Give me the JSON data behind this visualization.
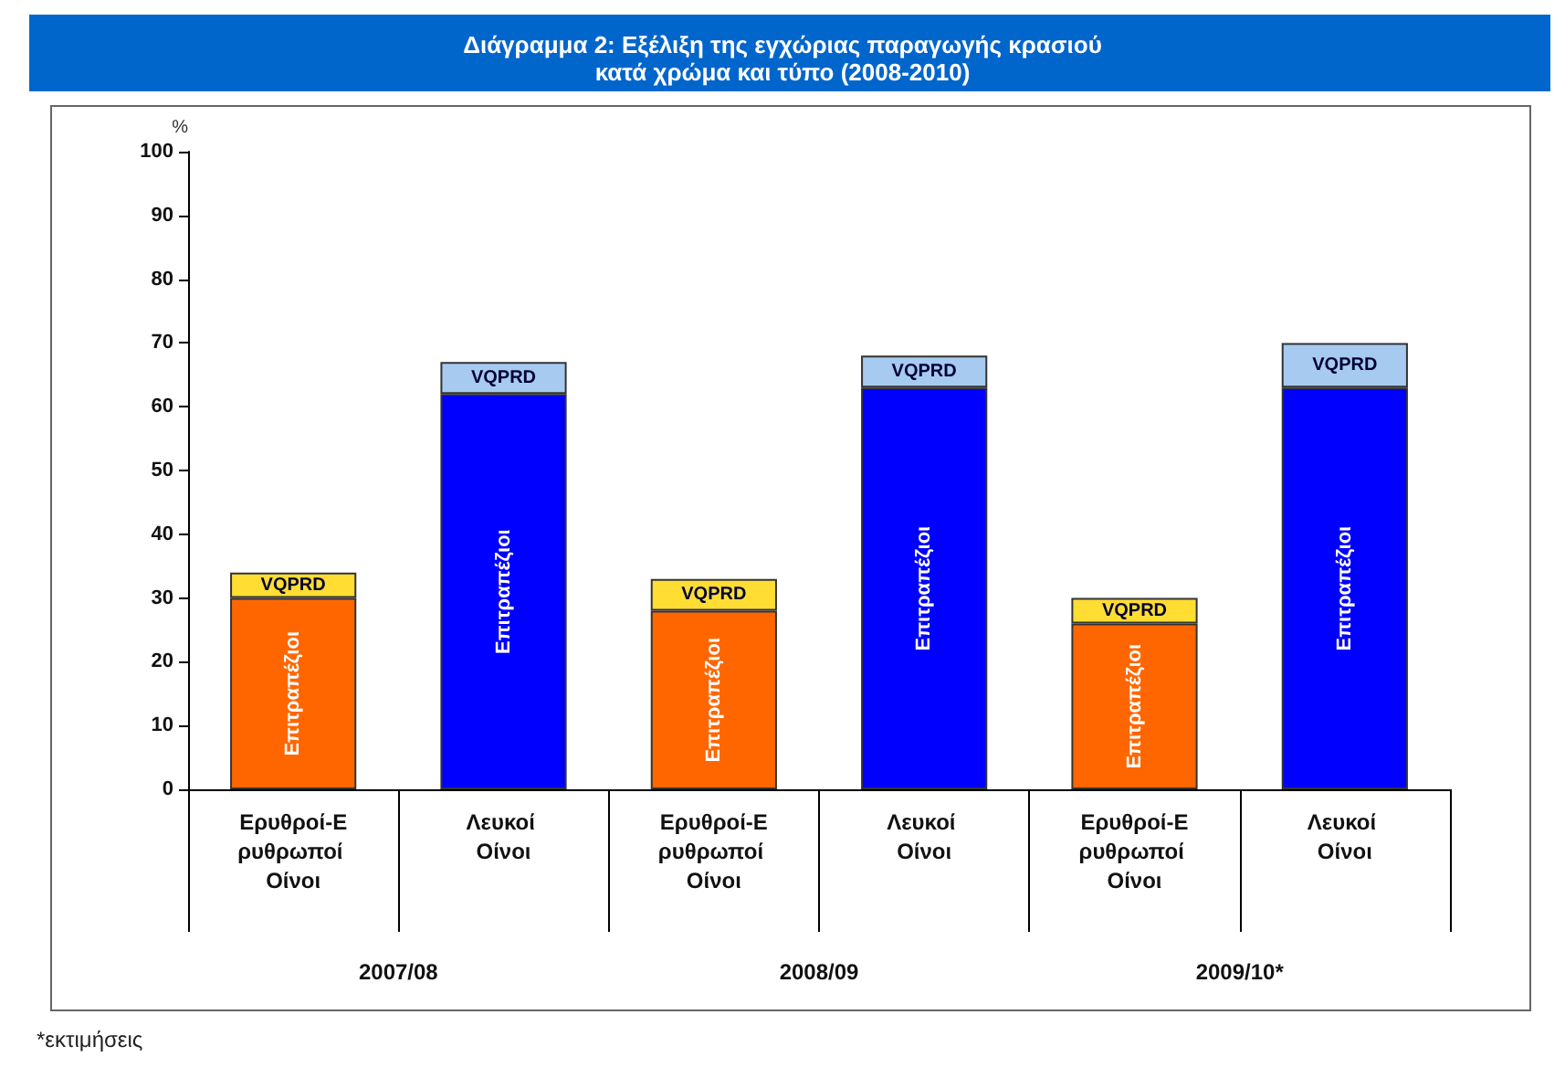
{
  "chart_data": {
    "type": "bar",
    "title": "Διάγραμμα 2: Εξέλιξη της εγχώριας παραγωγής κρασιού\nκατά χρώμα και τύπο (2008-2010)",
    "ylabel": "%",
    "categories": [
      "Ερυθροί-Ερυθρωποί Οίνοι",
      "Λευκοί Οίνοι",
      "Ερυθροί-Ερυθρωποί Οίνοι",
      "Λευκοί Οίνοι",
      "Ερυθροί-Ερυθρωποί Οίνοι",
      "Λευκοί Οίνοι"
    ],
    "stacked": true,
    "series": [
      {
        "name": "Επιτραπέζιοι",
        "colors": [
          "#ff6600",
          "#0000ff",
          "#ff6600",
          "#0000ff",
          "#ff6600",
          "#0000ff"
        ],
        "values": [
          30,
          62,
          28,
          63,
          26,
          63
        ]
      },
      {
        "name": "VQPRD",
        "colors": [
          "#ffdd33",
          "#a6caf0",
          "#ffdd33",
          "#a6caf0",
          "#ffdd33",
          "#a6caf0"
        ],
        "values": [
          4,
          5,
          5,
          5,
          4,
          7
        ]
      }
    ],
    "ylim": [
      0,
      100
    ],
    "yticks": [
      0,
      10,
      20,
      30,
      40,
      50,
      60,
      70,
      80,
      90,
      100
    ],
    "grid": false,
    "legend": false,
    "annotations": [
      "2007/08",
      "2008/09",
      "2009/10*",
      "*εκτιμήσεις"
    ]
  }
}
